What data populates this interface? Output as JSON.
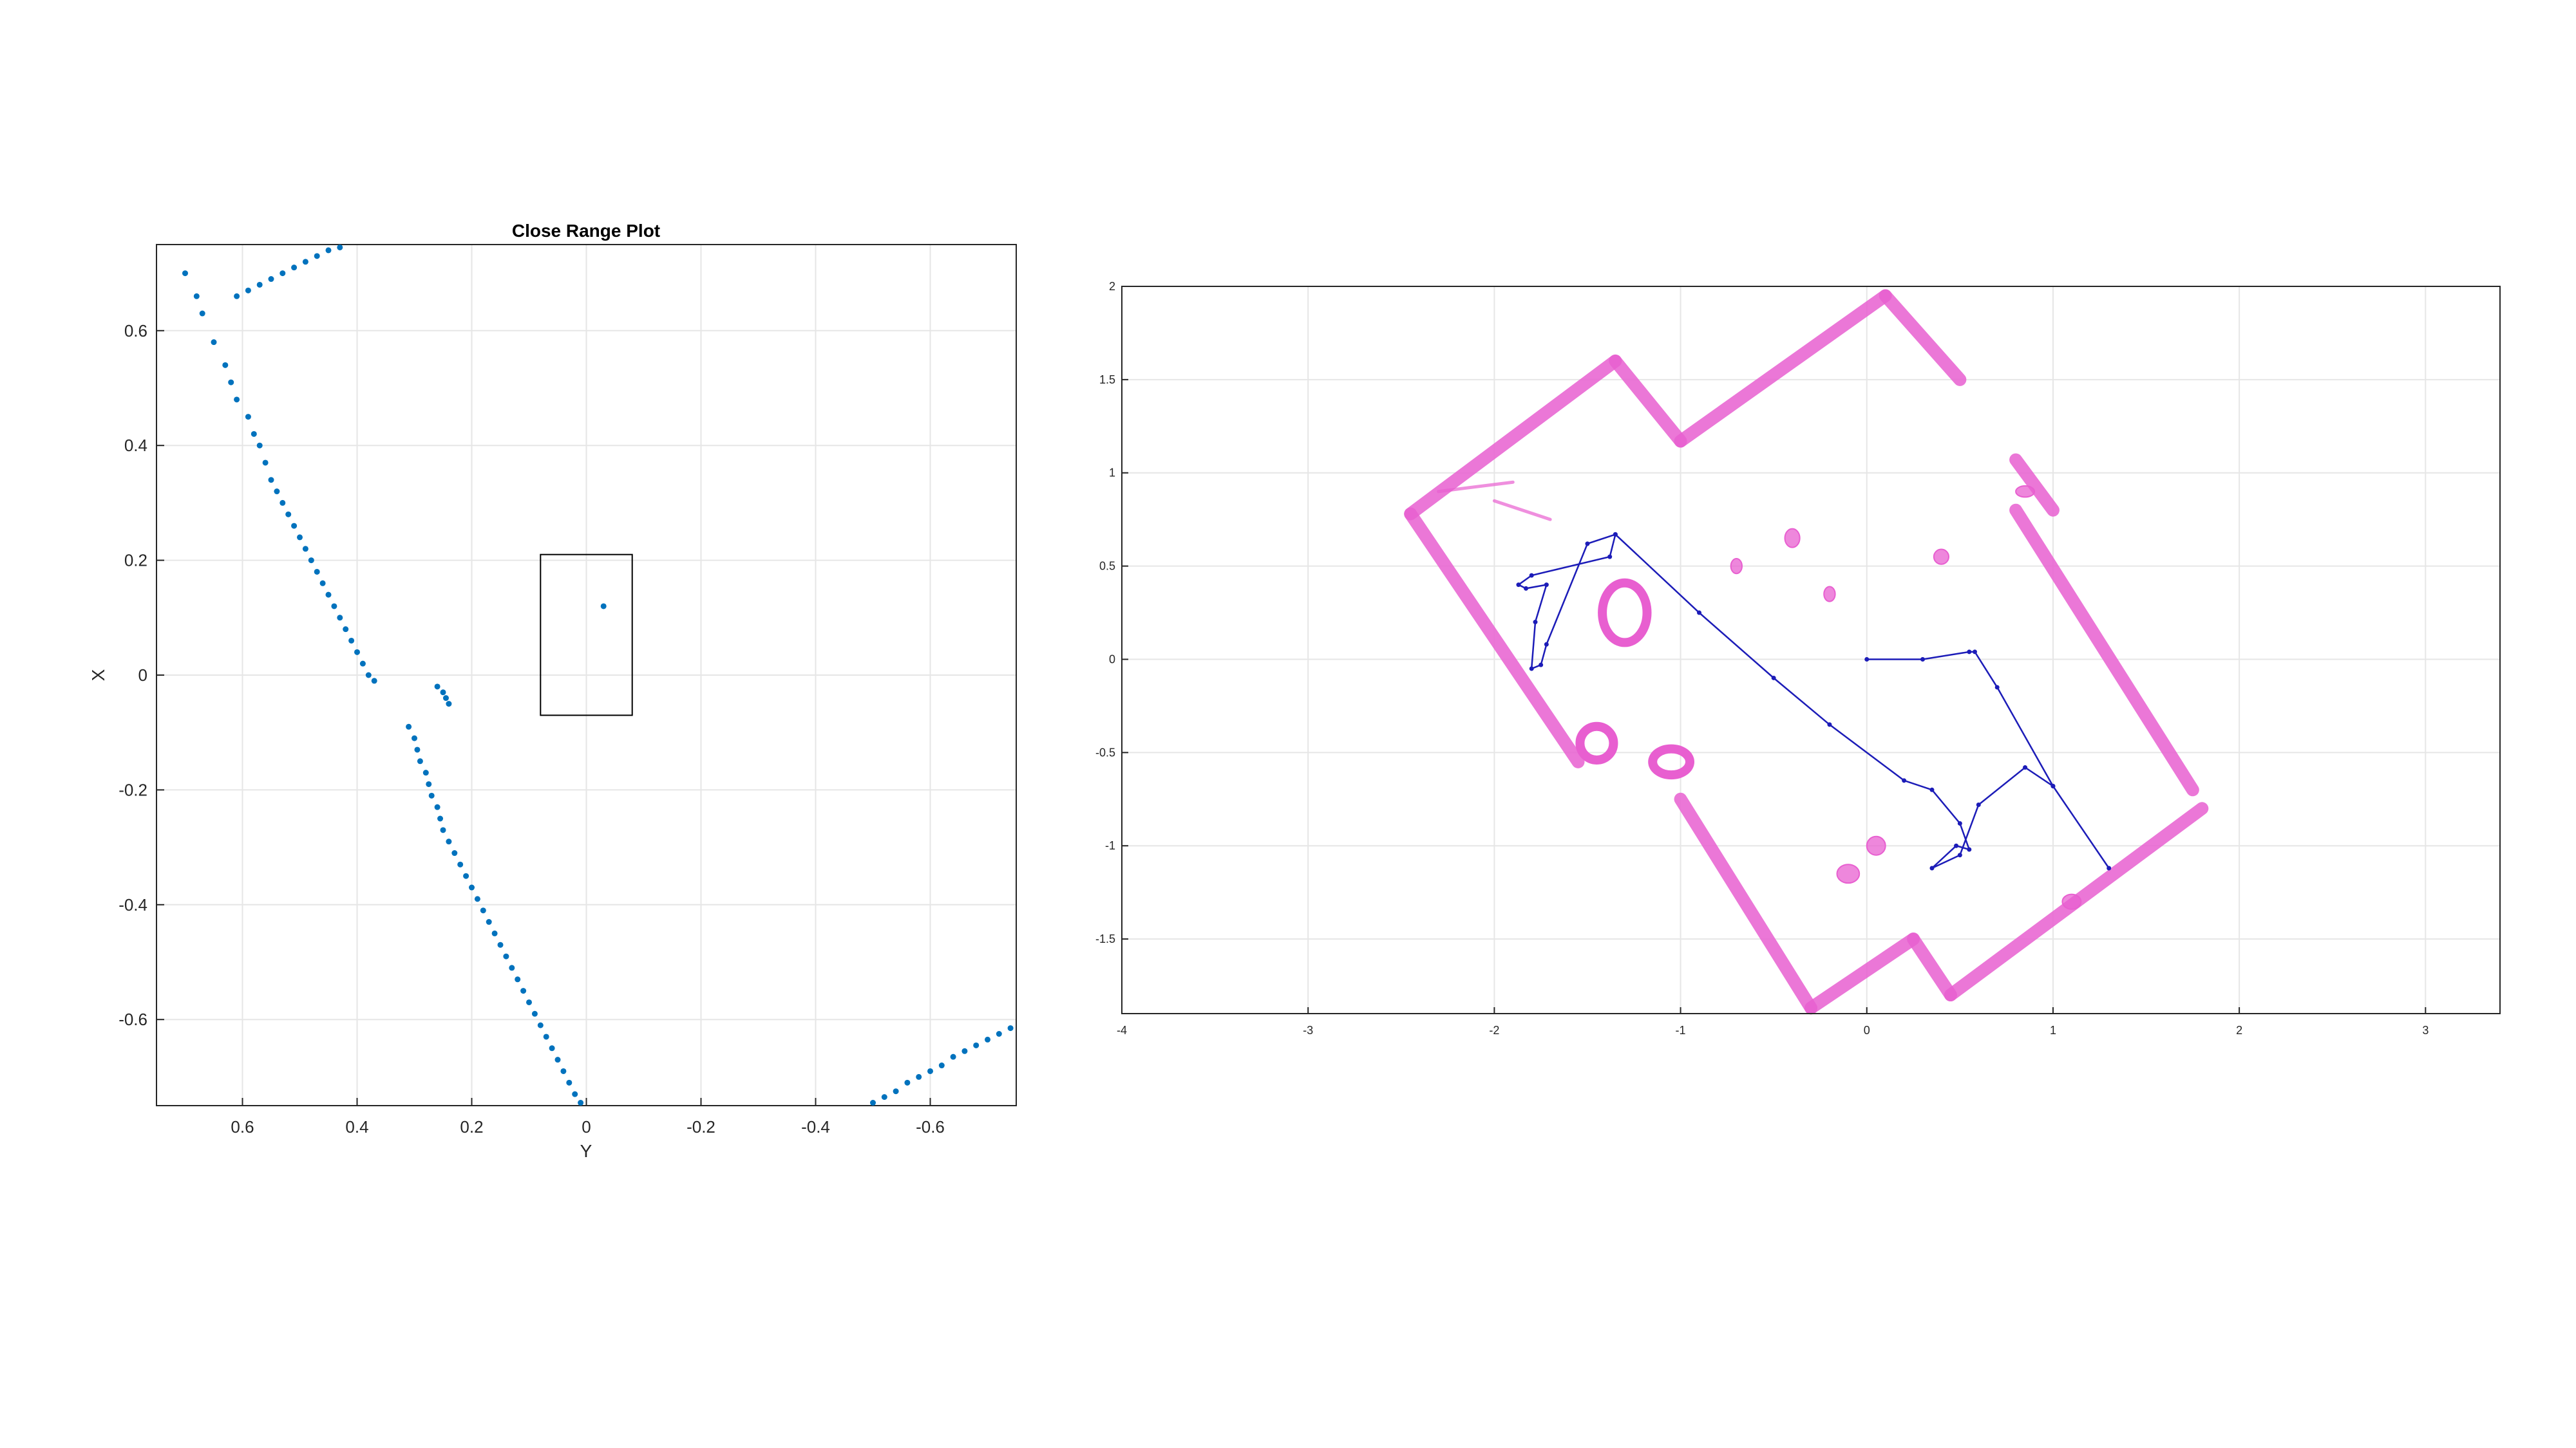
{
  "chart_data": [
    {
      "type": "scatter",
      "title": "Close Range Plot",
      "xlabel": "Y",
      "ylabel": "X",
      "xlim": [
        0.75,
        -0.75
      ],
      "ylim": [
        -0.75,
        0.75
      ],
      "x_reversed": true,
      "grid": true,
      "x_ticks": [
        0.6,
        0.4,
        0.2,
        0,
        -0.2,
        -0.4,
        -0.6
      ],
      "x_tick_labels": [
        "0.6",
        "0.4",
        "0.2",
        "0",
        "-0.2",
        "-0.4",
        "-0.6"
      ],
      "y_ticks": [
        0.6,
        0.4,
        0.2,
        0,
        -0.2,
        -0.4,
        -0.6
      ],
      "y_tick_labels": [
        "0.6",
        "0.4",
        "0.2",
        "0",
        "-0.2",
        "-0.4",
        "-0.6"
      ],
      "marker_color": "#0072BD",
      "series": [
        {
          "points": [
            [
              0.7,
              0.7
            ],
            [
              0.68,
              0.66
            ],
            [
              0.67,
              0.63
            ],
            [
              0.65,
              0.58
            ],
            [
              0.63,
              0.54
            ],
            [
              0.62,
              0.51
            ],
            [
              0.61,
              0.48
            ],
            [
              0.59,
              0.45
            ],
            [
              0.58,
              0.42
            ],
            [
              0.57,
              0.4
            ],
            [
              0.56,
              0.37
            ],
            [
              0.55,
              0.34
            ],
            [
              0.54,
              0.32
            ],
            [
              0.53,
              0.3
            ],
            [
              0.52,
              0.28
            ],
            [
              0.51,
              0.26
            ],
            [
              0.5,
              0.24
            ],
            [
              0.49,
              0.22
            ],
            [
              0.48,
              0.2
            ],
            [
              0.47,
              0.18
            ],
            [
              0.46,
              0.16
            ],
            [
              0.45,
              0.14
            ],
            [
              0.44,
              0.12
            ],
            [
              0.43,
              0.1
            ],
            [
              0.42,
              0.08
            ],
            [
              0.41,
              0.06
            ],
            [
              0.4,
              0.04
            ],
            [
              0.39,
              0.02
            ],
            [
              0.38,
              0.0
            ],
            [
              0.37,
              -0.01
            ],
            [
              0.26,
              -0.02
            ],
            [
              0.25,
              -0.03
            ],
            [
              0.245,
              -0.04
            ],
            [
              0.24,
              -0.05
            ],
            [
              0.31,
              -0.09
            ],
            [
              0.3,
              -0.11
            ],
            [
              0.295,
              -0.13
            ],
            [
              0.29,
              -0.15
            ],
            [
              0.28,
              -0.17
            ],
            [
              0.275,
              -0.19
            ],
            [
              0.27,
              -0.21
            ],
            [
              0.26,
              -0.23
            ],
            [
              0.255,
              -0.25
            ],
            [
              0.25,
              -0.27
            ],
            [
              0.24,
              -0.29
            ],
            [
              0.23,
              -0.31
            ],
            [
              0.22,
              -0.33
            ],
            [
              0.21,
              -0.35
            ],
            [
              0.2,
              -0.37
            ],
            [
              0.19,
              -0.39
            ],
            [
              0.18,
              -0.41
            ],
            [
              0.17,
              -0.43
            ],
            [
              0.16,
              -0.45
            ],
            [
              0.15,
              -0.47
            ],
            [
              0.14,
              -0.49
            ],
            [
              0.13,
              -0.51
            ],
            [
              0.12,
              -0.53
            ],
            [
              0.11,
              -0.55
            ],
            [
              0.1,
              -0.57
            ],
            [
              0.09,
              -0.59
            ],
            [
              0.08,
              -0.61
            ],
            [
              0.07,
              -0.63
            ],
            [
              0.06,
              -0.65
            ],
            [
              0.05,
              -0.67
            ],
            [
              0.04,
              -0.69
            ],
            [
              0.03,
              -0.71
            ],
            [
              0.02,
              -0.73
            ],
            [
              0.01,
              -0.745
            ],
            [
              0.61,
              0.66
            ],
            [
              0.59,
              0.67
            ],
            [
              0.57,
              0.68
            ],
            [
              0.55,
              0.69
            ],
            [
              0.53,
              0.7
            ],
            [
              0.51,
              0.71
            ],
            [
              0.49,
              0.72
            ],
            [
              0.47,
              0.73
            ],
            [
              0.45,
              0.74
            ],
            [
              0.43,
              0.745
            ],
            [
              -0.5,
              -0.745
            ],
            [
              -0.52,
              -0.735
            ],
            [
              -0.54,
              -0.725
            ],
            [
              -0.56,
              -0.71
            ],
            [
              -0.58,
              -0.7
            ],
            [
              -0.6,
              -0.69
            ],
            [
              -0.62,
              -0.68
            ],
            [
              -0.64,
              -0.665
            ],
            [
              -0.66,
              -0.655
            ],
            [
              -0.68,
              -0.645
            ],
            [
              -0.7,
              -0.635
            ],
            [
              -0.72,
              -0.625
            ],
            [
              -0.74,
              -0.615
            ],
            [
              -0.03,
              0.12
            ]
          ]
        }
      ],
      "annotation_rect": {
        "y_from": 0.08,
        "y_to": -0.08,
        "x_from": -0.07,
        "x_to": 0.21
      }
    },
    {
      "type": "scatter",
      "title": "",
      "xlabel": "",
      "ylabel": "",
      "xlim": [
        -4,
        3.4
      ],
      "ylim": [
        -1.9,
        2.0
      ],
      "grid": true,
      "x_ticks": [
        -4,
        -3,
        -2,
        -1,
        0,
        1,
        2,
        3
      ],
      "x_tick_labels": [
        "-4",
        "-3",
        "-2",
        "-1",
        "0",
        "1",
        "2",
        "3"
      ],
      "y_ticks": [
        2,
        1.5,
        1,
        0.5,
        0,
        -0.5,
        -1,
        -1.5
      ],
      "y_tick_labels": [
        "2",
        "1.5",
        "1",
        "0.5",
        "0",
        "-0.5",
        "-1",
        "-1.5"
      ],
      "map_color": "#E85FD0",
      "path_color": "#1C1CB8",
      "map_walls": [
        [
          [
            -2.45,
            0.78
          ],
          [
            -1.35,
            1.6
          ]
        ],
        [
          [
            -1.35,
            1.6
          ],
          [
            -1.0,
            1.17
          ]
        ],
        [
          [
            -1.0,
            1.17
          ],
          [
            0.1,
            1.95
          ]
        ],
        [
          [
            0.1,
            1.95
          ],
          [
            0.5,
            1.5
          ]
        ],
        [
          [
            0.8,
            1.07
          ],
          [
            1.0,
            0.8
          ]
        ],
        [
          [
            0.8,
            0.8
          ],
          [
            1.75,
            -0.7
          ]
        ],
        [
          [
            1.8,
            -0.8
          ],
          [
            0.45,
            -1.8
          ]
        ],
        [
          [
            0.45,
            -1.8
          ],
          [
            0.25,
            -1.5
          ]
        ],
        [
          [
            0.25,
            -1.5
          ],
          [
            -0.3,
            -1.87
          ]
        ],
        [
          [
            -0.3,
            -1.87
          ],
          [
            -1.0,
            -0.75
          ]
        ],
        [
          [
            -1.55,
            -0.55
          ],
          [
            -2.45,
            0.78
          ]
        ],
        [
          [
            -2.3,
            0.9
          ],
          [
            -1.9,
            0.95
          ]
        ],
        [
          [
            -2.0,
            0.85
          ],
          [
            -1.7,
            0.75
          ]
        ]
      ],
      "map_blobs": [
        [
          -1.3,
          0.25,
          0.12,
          0.16
        ],
        [
          -1.05,
          -0.55,
          0.1,
          0.07
        ],
        [
          -1.45,
          -0.45,
          0.09,
          0.09
        ],
        [
          0.4,
          0.55,
          0.04,
          0.04
        ],
        [
          -0.2,
          0.35,
          0.03,
          0.04
        ],
        [
          0.85,
          0.9,
          0.05,
          0.03
        ],
        [
          1.1,
          -1.3,
          0.05,
          0.04
        ],
        [
          -0.1,
          -1.15,
          0.06,
          0.05
        ],
        [
          0.05,
          -1.0,
          0.05,
          0.05
        ],
        [
          -0.4,
          0.65,
          0.04,
          0.05
        ],
        [
          -0.7,
          0.5,
          0.03,
          0.04
        ]
      ],
      "path": [
        [
          -1.35,
          0.67
        ],
        [
          -1.38,
          0.55
        ],
        [
          -1.8,
          0.45
        ],
        [
          -1.87,
          0.4
        ],
        [
          -1.83,
          0.38
        ],
        [
          -1.72,
          0.4
        ],
        [
          -1.78,
          0.2
        ],
        [
          -1.8,
          -0.05
        ],
        [
          -1.75,
          -0.03
        ],
        [
          -1.72,
          0.08
        ],
        [
          -1.5,
          0.62
        ],
        [
          -1.35,
          0.67
        ],
        [
          -0.9,
          0.25
        ],
        [
          -0.5,
          -0.1
        ],
        [
          -0.2,
          -0.35
        ],
        [
          0.2,
          -0.65
        ],
        [
          0.35,
          -0.7
        ],
        [
          0.5,
          -0.88
        ],
        [
          0.55,
          -1.02
        ],
        [
          0.48,
          -1.0
        ],
        [
          0.35,
          -1.12
        ],
        [
          0.5,
          -1.05
        ],
        [
          0.6,
          -0.78
        ],
        [
          0.85,
          -0.58
        ],
        [
          1.0,
          -0.68
        ],
        [
          1.3,
          -1.12
        ],
        [
          1.0,
          -0.68
        ],
        [
          0.7,
          -0.15
        ],
        [
          0.58,
          0.04
        ],
        [
          0.55,
          0.04
        ],
        [
          0.3,
          0.0
        ],
        [
          0.0,
          0.0
        ]
      ]
    }
  ]
}
